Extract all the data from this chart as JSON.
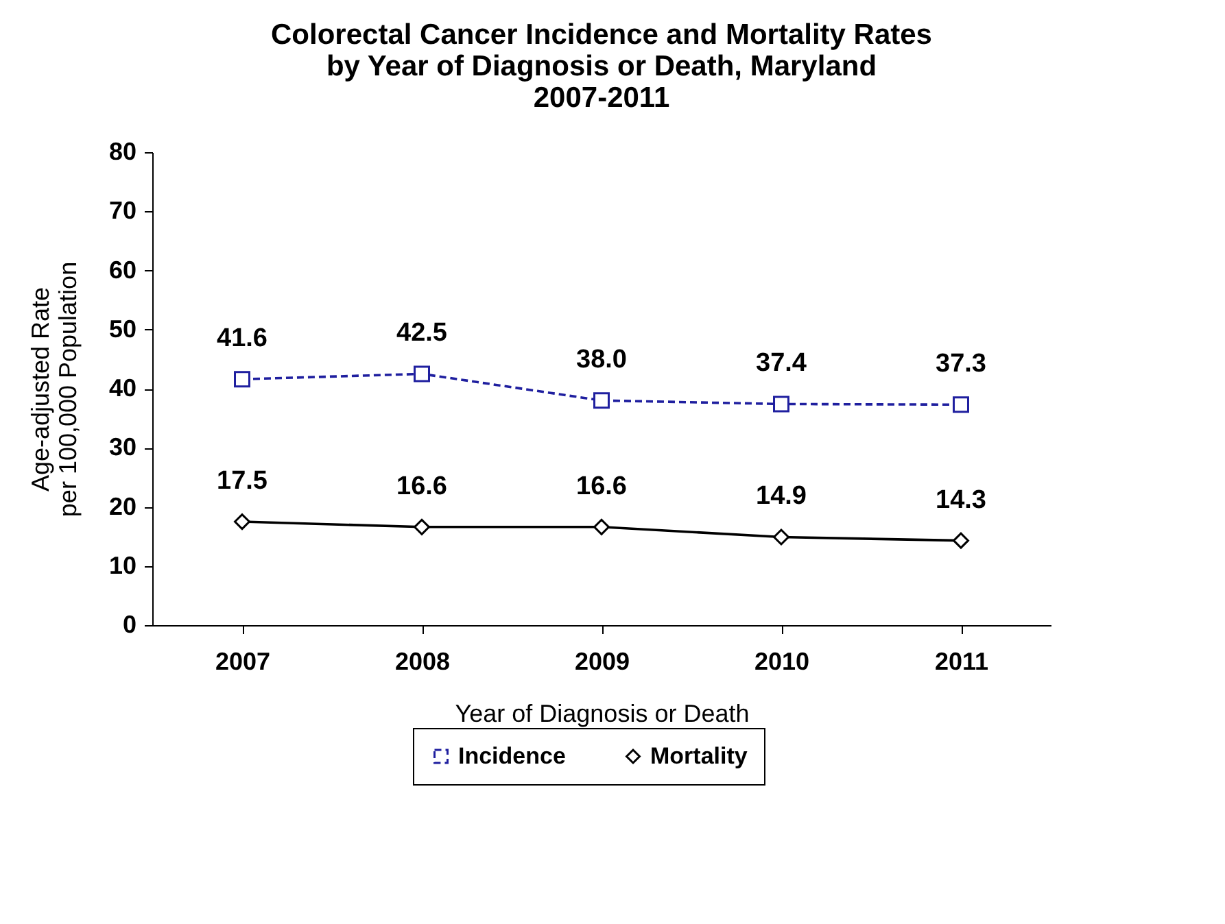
{
  "chart_data": {
    "type": "line",
    "title": "Colorectal Cancer Incidence and Mortality Rates\nby Year of Diagnosis or Death, Maryland\n2007-2011",
    "xlabel": "Year of Diagnosis or Death",
    "ylabel": "Age-adjusted Rate\nper 100,000 Population",
    "categories": [
      "2007",
      "2008",
      "2009",
      "2010",
      "2011"
    ],
    "series": [
      {
        "name": "Incidence",
        "color": "#1f1f9f",
        "marker": "square",
        "line_style": "dashed",
        "values": [
          41.6,
          42.5,
          38.0,
          37.4,
          37.3
        ],
        "value_labels": [
          "41.6",
          "42.5",
          "38.0",
          "37.4",
          "37.3"
        ]
      },
      {
        "name": "Mortality",
        "color": "#000000",
        "marker": "diamond",
        "line_style": "solid",
        "values": [
          17.5,
          16.6,
          16.6,
          14.9,
          14.3
        ],
        "value_labels": [
          "17.5",
          "16.6",
          "16.6",
          "14.9",
          "14.3"
        ]
      }
    ],
    "ylim": [
      0,
      80
    ],
    "yticks": [
      0,
      10,
      20,
      30,
      40,
      50,
      60,
      70,
      80
    ],
    "grid": false,
    "legend": "bottom"
  }
}
